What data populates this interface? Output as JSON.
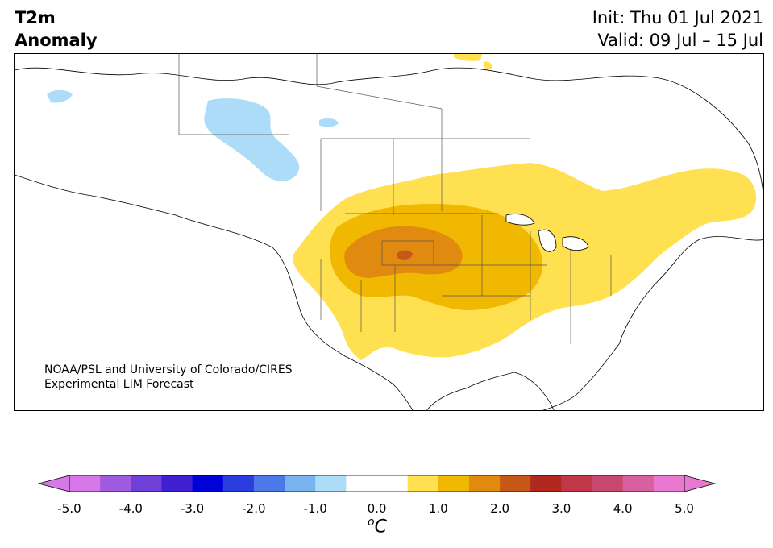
{
  "title": {
    "line1": "T2m",
    "line2": "Anomaly"
  },
  "forecast": {
    "init": "Init: Thu 01 Jul 2021",
    "valid": "Valid: 09 Jul – 15 Jul"
  },
  "credit": {
    "line1": "NOAA/PSL and University of Colorado/CIRES",
    "line2": "Experimental LIM Forecast"
  },
  "colorbar": {
    "unit": "oC",
    "tick_labels": [
      "-5.0",
      "-4.0",
      "-3.0",
      "-2.0",
      "-1.0",
      "0.0",
      "1.0",
      "2.0",
      "3.0",
      "4.0",
      "5.0"
    ],
    "colors": [
      "#d678e8",
      "#a05ce0",
      "#7040d8",
      "#4020d0",
      "#0000d8",
      "#2a3ee0",
      "#4c78e8",
      "#78b4f0",
      "#acdcf8",
      "#ffffff",
      "#ffffff",
      "#ffe050",
      "#f0b800",
      "#e08a10",
      "#c85818",
      "#b02820",
      "#c03848",
      "#c84870",
      "#d860a0",
      "#e878d0"
    ]
  },
  "map": {
    "region": "North America",
    "anomaly_areas": {
      "warm_1_0": "#ffe050",
      "warm_1_5": "#f0b800",
      "warm_2_0": "#e08a10",
      "warm_2_5": "#c85818",
      "cool_0_5": "#acdcf8"
    }
  }
}
